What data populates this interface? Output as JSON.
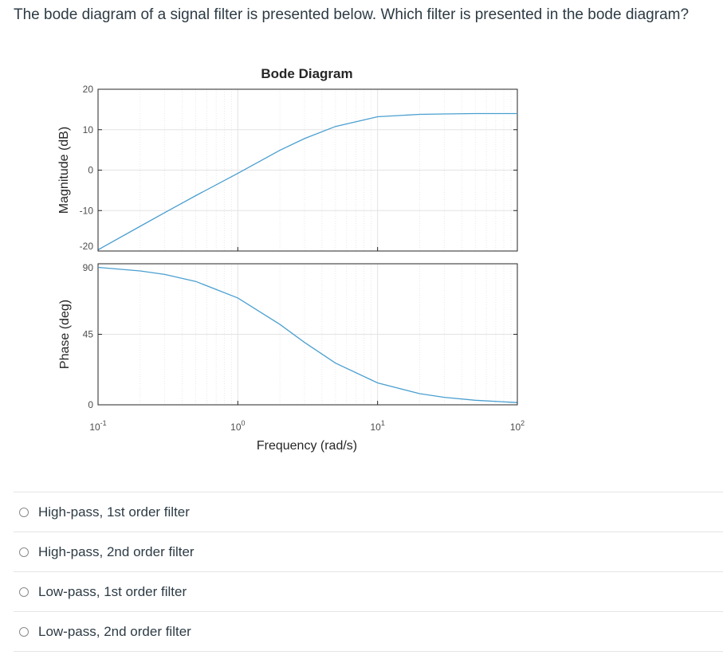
{
  "question": "The bode diagram of a signal filter is presented below. Which filter is presented in the bode diagram?",
  "colors": {
    "line": "#4a9fd0",
    "grid": "#e3e3e3",
    "axis": "#262626"
  },
  "chart_data": {
    "type": "line",
    "title": "Bode Diagram",
    "xlabel": "Frequency (rad/s)",
    "x_scale": "log",
    "xlim": [
      0.1,
      100
    ],
    "x_ticks": [
      {
        "value": 0.1,
        "base": "10",
        "exp": "-1"
      },
      {
        "value": 1,
        "base": "10",
        "exp": "0"
      },
      {
        "value": 10,
        "base": "10",
        "exp": "1"
      },
      {
        "value": 100,
        "base": "10",
        "exp": "2"
      }
    ],
    "grid": true,
    "panels": [
      {
        "name": "magnitude",
        "ylabel": "Magnitude (dB)",
        "ylim": [
          -20,
          20
        ],
        "y_ticks": [
          20,
          10,
          0,
          -10,
          -20
        ],
        "x": [
          0.1,
          0.2,
          0.3,
          0.5,
          1,
          2,
          3,
          5,
          10,
          20,
          30,
          50,
          100
        ],
        "y": [
          -19.7,
          -13.9,
          -10.5,
          -6.3,
          -0.8,
          4.9,
          7.8,
          10.8,
          13.2,
          13.8,
          13.9,
          14,
          14
        ]
      },
      {
        "name": "phase",
        "ylabel": "Phase (deg)",
        "ylim": [
          0,
          90
        ],
        "y_ticks": [
          90,
          45,
          0
        ],
        "x": [
          0.1,
          0.2,
          0.3,
          0.5,
          1,
          2,
          3,
          5,
          10,
          20,
          30,
          50,
          100
        ],
        "y": [
          87.7,
          85.4,
          83.2,
          78.7,
          68.2,
          51.3,
          39.8,
          26.6,
          14.0,
          7.1,
          4.8,
          2.9,
          1.4
        ]
      }
    ]
  },
  "answers": [
    {
      "label": "High-pass, 1st order filter"
    },
    {
      "label": "High-pass, 2nd order filter"
    },
    {
      "label": "Low-pass, 1st order filter"
    },
    {
      "label": "Low-pass, 2nd order filter"
    }
  ]
}
